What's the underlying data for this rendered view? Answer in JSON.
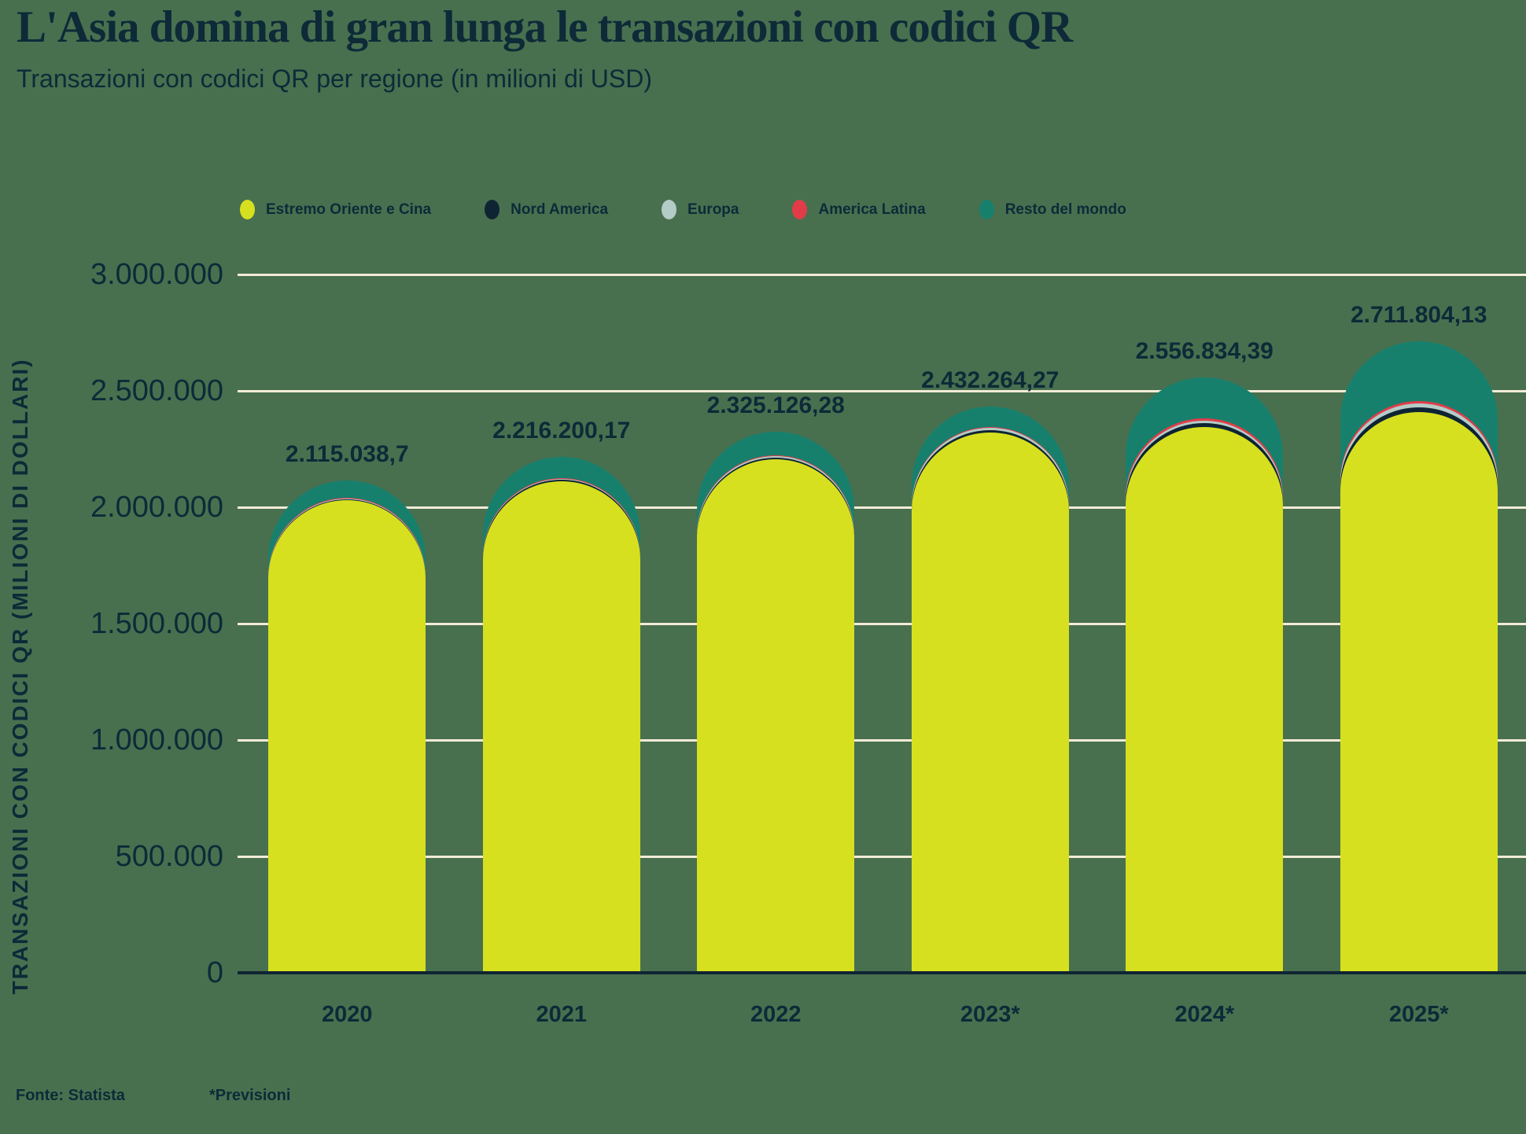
{
  "header": {
    "title": "L'Asia domina di gran lunga le transazioni con codici QR",
    "subtitle": "Transazioni con codici QR per regione (in milioni di USD)"
  },
  "footer": {
    "source": "Fonte: Statista",
    "forecast_note": "*Previsioni"
  },
  "colors": {
    "background": "#48704f",
    "text": "#0e2a38",
    "gridline": "#f3ebd6",
    "axis_line": "#0e2433"
  },
  "chart_data": {
    "type": "bar",
    "stacked": true,
    "rounded_caps": true,
    "title": "L'Asia domina di gran lunga le transazioni con codici QR",
    "subtitle": "Transazioni con codici QR per regione (in milioni di USD)",
    "xlabel": "",
    "ylabel": "TRANSAZIONI CON CODICI QR (MILIONI DI DOLLARI)",
    "ylim": [
      0,
      3000000
    ],
    "grid": true,
    "legend_position": "top",
    "categories": [
      "2020",
      "2021",
      "2022",
      "2023*",
      "2024*",
      "2025*"
    ],
    "series": [
      {
        "name": "Estremo Oriente e Cina",
        "color": "#d7e01e",
        "values": [
          2030000,
          2110000,
          2205000,
          2320000,
          2345000,
          2410000
        ]
      },
      {
        "name": "Nord America",
        "color": "#0e2433",
        "values": [
          5000,
          7000,
          9000,
          12000,
          16000,
          20000
        ]
      },
      {
        "name": "Europa",
        "color": "#b3ccc7",
        "values": [
          3000,
          4500,
          6000,
          8000,
          12000,
          15000
        ]
      },
      {
        "name": "America Latina",
        "color": "#e23c49",
        "values": [
          2000,
          2500,
          3500,
          5000,
          8000,
          12000
        ]
      },
      {
        "name": "Resto del mondo",
        "color": "#17806d",
        "values": [
          75038.7,
          92200.17,
          101626.28,
          87264.27,
          175834.39,
          254804.13
        ]
      }
    ],
    "totals": [
      2115038.7,
      2216200.17,
      2325126.28,
      2432264.27,
      2556834.39,
      2711804.13
    ],
    "total_labels": [
      "2.115.038,7",
      "2.216.200,17",
      "2.325.126,28",
      "2.432.264,27",
      "2.556.834,39",
      "2.711.804,13"
    ],
    "y_tick_values": [
      3000000,
      2500000,
      2000000,
      1500000,
      1000000,
      500000,
      0
    ],
    "y_tick_labels": [
      "3.000.000",
      "2.500.000",
      "2.000.000",
      "1.500.000",
      "1.000.000",
      "500.000",
      "0"
    ]
  }
}
